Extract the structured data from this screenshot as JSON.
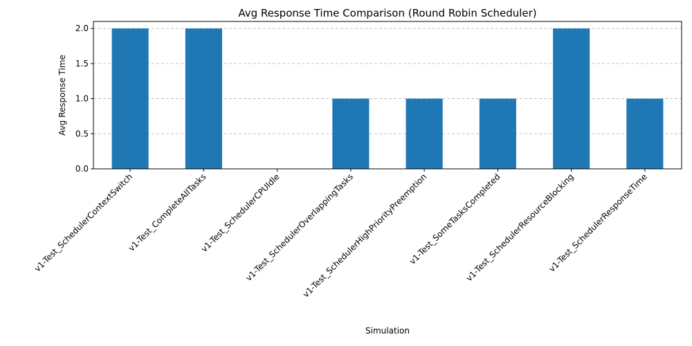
{
  "chart_data": {
    "type": "bar",
    "title": "Avg Response Time Comparison (Round Robin Scheduler)",
    "xlabel": "Simulation",
    "ylabel": "Avg Response Time",
    "categories": [
      "v1-Test_SchedulerContextSwitch",
      "v1-Test_CompleteAllTasks",
      "v1-Test_SchedulerCPUIdle",
      "v1-Test_SchedulerOverlappingTasks",
      "v1-Test_SchedulerHighPriorityPreemption",
      "v1-Test_SomeTasksCompleted",
      "v1-Test_SchedulerResourceBlocking",
      "v1-Test_SchedulerResponseTime"
    ],
    "values": [
      2,
      2,
      0,
      1,
      1,
      1,
      2,
      1
    ],
    "ylim": [
      0,
      2.1
    ],
    "yticks": [
      "0.0",
      "0.5",
      "1.0",
      "1.5",
      "2.0"
    ],
    "grid": "y-dashed",
    "bar_color": "#1f77b4"
  }
}
